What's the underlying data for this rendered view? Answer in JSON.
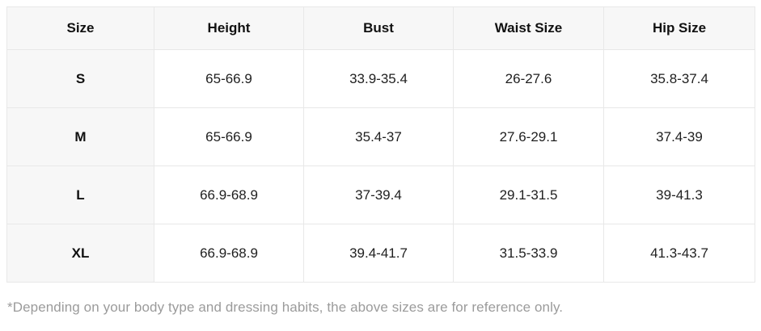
{
  "table": {
    "columns": [
      "Size",
      "Height",
      "Bust",
      "Waist Size",
      "Hip Size"
    ],
    "rows": [
      [
        "S",
        "65-66.9",
        "33.9-35.4",
        "26-27.6",
        "35.8-37.4"
      ],
      [
        "M",
        "65-66.9",
        "35.4-37",
        "27.6-29.1",
        "37.4-39"
      ],
      [
        "L",
        "66.9-68.9",
        "37-39.4",
        "29.1-31.5",
        "39-41.3"
      ],
      [
        "XL",
        "66.9-68.9",
        "39.4-41.7",
        "31.5-33.9",
        "41.3-43.7"
      ]
    ]
  },
  "footnote": "*Depending on your body type and dressing habits, the above sizes are for reference only.",
  "colors": {
    "header_background": "#f7f7f7",
    "grid_border": "#e8e8e8",
    "footnote_text": "#9b9b9b",
    "cell_text": "#1f1f1f"
  }
}
